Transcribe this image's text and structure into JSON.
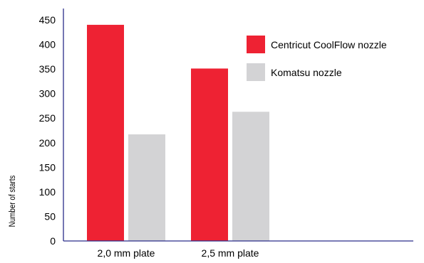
{
  "chart_data": {
    "type": "bar",
    "title": "",
    "xlabel": "",
    "ylabel": "Number of starts",
    "ylim": [
      0,
      450
    ],
    "yticks": [
      0,
      50,
      100,
      150,
      200,
      250,
      300,
      350,
      400,
      450
    ],
    "grid": false,
    "legend_position": "top-right",
    "categories": [
      "2,0 mm plate",
      "2,5 mm plate"
    ],
    "series": [
      {
        "name": "Centricut CoolFlow nozzle",
        "color": "#ee2233",
        "values": [
          440,
          351
        ]
      },
      {
        "name": "Komatsu nozzle",
        "color": "#d3d3d5",
        "values": [
          217,
          263
        ]
      }
    ],
    "axis_color": "#2b2e8a"
  }
}
